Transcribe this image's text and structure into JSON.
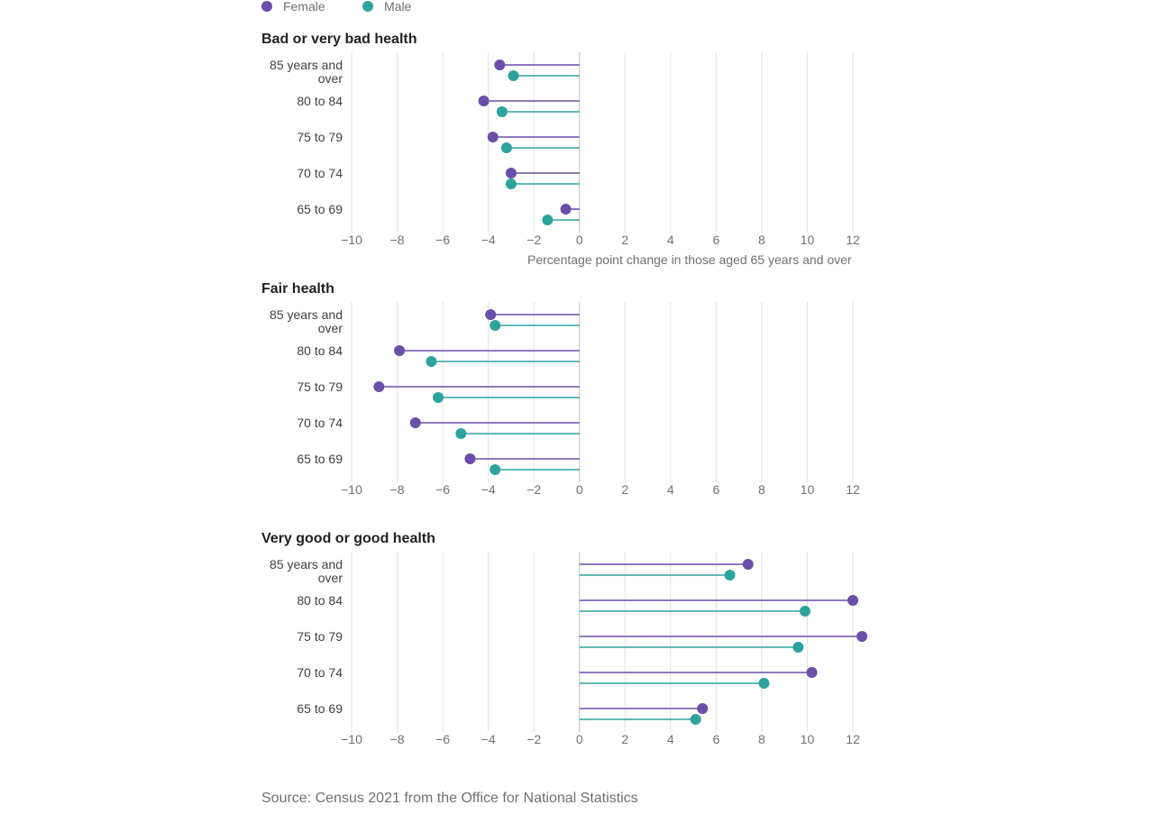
{
  "legend": [
    {
      "name": "Female",
      "color": "#6a4fa8"
    },
    {
      "name": "Male",
      "color": "#2ea39d"
    }
  ],
  "source": "Source: Census 2021 from the Office for National Statistics",
  "chart_data": [
    {
      "type": "lollipop",
      "title": "Bad or very bad health",
      "xlabel": "Percentage point change in those aged 65 years and over",
      "xlim": [
        -10,
        12
      ],
      "xticks": [
        -10,
        -8,
        -6,
        -4,
        -2,
        0,
        2,
        4,
        6,
        8,
        10,
        12
      ],
      "grid": true,
      "categories": [
        [
          "85 years and",
          "over"
        ],
        [
          "80 to 84"
        ],
        [
          "75 to 79"
        ],
        [
          "70 to 74"
        ],
        [
          "65 to 69"
        ]
      ],
      "series": [
        {
          "name": "Female",
          "values": [
            -3.5,
            -4.2,
            -3.8,
            -3.0,
            -0.6
          ]
        },
        {
          "name": "Male",
          "values": [
            -2.9,
            -3.4,
            -3.2,
            -3.0,
            -1.4
          ]
        }
      ]
    },
    {
      "type": "lollipop",
      "title": "Fair health",
      "xlabel": "",
      "xlim": [
        -10,
        12
      ],
      "xticks": [
        -10,
        -8,
        -6,
        -4,
        -2,
        0,
        2,
        4,
        6,
        8,
        10,
        12
      ],
      "grid": true,
      "categories": [
        [
          "85 years and",
          "over"
        ],
        [
          "80 to 84"
        ],
        [
          "75 to 79"
        ],
        [
          "70 to 74"
        ],
        [
          "65 to 69"
        ]
      ],
      "series": [
        {
          "name": "Female",
          "values": [
            -3.9,
            -7.9,
            -8.8,
            -7.2,
            -4.8
          ]
        },
        {
          "name": "Male",
          "values": [
            -3.7,
            -6.5,
            -6.2,
            -5.2,
            -3.7
          ]
        }
      ]
    },
    {
      "type": "lollipop",
      "title": "Very good or good health",
      "xlabel": "",
      "xlim": [
        -10,
        12
      ],
      "xticks": [
        -10,
        -8,
        -6,
        -4,
        -2,
        0,
        2,
        4,
        6,
        8,
        10,
        12
      ],
      "grid": true,
      "categories": [
        [
          "85 years and",
          "over"
        ],
        [
          "80 to 84"
        ],
        [
          "75 to 79"
        ],
        [
          "70 to 74"
        ],
        [
          "65 to 69"
        ]
      ],
      "series": [
        {
          "name": "Female",
          "values": [
            7.4,
            12.0,
            12.4,
            10.2,
            5.4
          ]
        },
        {
          "name": "Male",
          "values": [
            6.6,
            9.9,
            9.6,
            8.1,
            5.1
          ]
        }
      ]
    }
  ]
}
